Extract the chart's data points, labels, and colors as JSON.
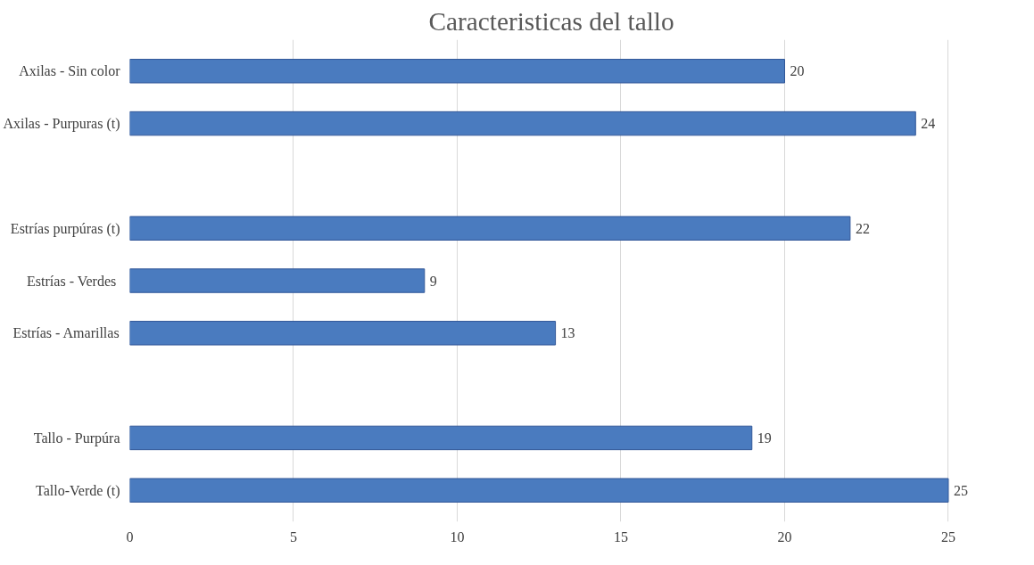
{
  "chart_data": {
    "type": "bar",
    "orientation": "horizontal",
    "title": "Caracteristicas del tallo",
    "categories": [
      "Axilas - Sin color",
      "Axilas - Purpuras (t)",
      null,
      "Estrías purpúras (t)",
      "Estrías - Verdes ",
      "Estrías - Amarillas",
      null,
      "Tallo - Purpúra",
      "Tallo-Verde (t)"
    ],
    "values": [
      20,
      24,
      null,
      22,
      9,
      13,
      null,
      19,
      25
    ],
    "color": "#4a7bbf",
    "xlim": [
      0,
      25
    ],
    "xticks": [
      0,
      5,
      10,
      15,
      20,
      25
    ],
    "grid": "x",
    "data_labels": true
  }
}
